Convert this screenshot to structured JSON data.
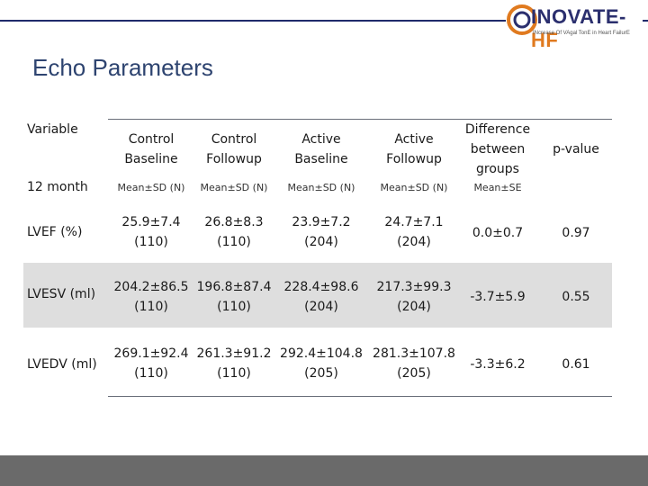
{
  "logo": {
    "brand_main": "INOVATE-",
    "brand_accent": "HF",
    "tagline": "INcrease Of VAgal TonE in Heart FailurE"
  },
  "title": "Echo Parameters",
  "table": {
    "variable_header": "Variable",
    "columns": [
      {
        "line1": "Control",
        "line2": "Baseline",
        "sub": "Mean±SD (N)"
      },
      {
        "line1": "Control",
        "line2": "Followup",
        "sub": "Mean±SD (N)"
      },
      {
        "line1": "Active",
        "line2": "Baseline",
        "sub": "Mean±SD (N)"
      },
      {
        "line1": "Active",
        "line2": "Followup",
        "sub": "Mean±SD (N)"
      },
      {
        "line1": "Difference",
        "line2": "between",
        "line3": "groups",
        "sub": "Mean±SE"
      },
      {
        "line1": "p-value",
        "sub": ""
      }
    ],
    "period_label": "12 month",
    "rows": [
      {
        "label": "LVEF (%)",
        "cb": [
          "25.9±7.4",
          "(110)"
        ],
        "cf": [
          "26.8±8.3",
          "(110)"
        ],
        "ab": [
          "23.9±7.2",
          "(204)"
        ],
        "af": [
          "24.7±7.1",
          "(204)"
        ],
        "diff": "0.0±0.7",
        "p": "0.97"
      },
      {
        "label": "LVESV (ml)",
        "cb": [
          "204.2±86.5",
          "(110)"
        ],
        "cf": [
          "196.8±87.4",
          "(110)"
        ],
        "ab": [
          "228.4±98.6",
          "(204)"
        ],
        "af": [
          "217.3±99.3",
          "(204)"
        ],
        "diff": "-3.7±5.9",
        "p": "0.55"
      },
      {
        "label": "LVEDV (ml)",
        "cb": [
          "269.1±92.4",
          "(110)"
        ],
        "cf": [
          "261.3±91.2",
          "(110)"
        ],
        "ab": [
          "292.4±104.8",
          "(205)"
        ],
        "af": [
          "281.3±107.8",
          "(205)"
        ],
        "diff": "-3.3±6.2",
        "p": "0.61"
      }
    ]
  }
}
